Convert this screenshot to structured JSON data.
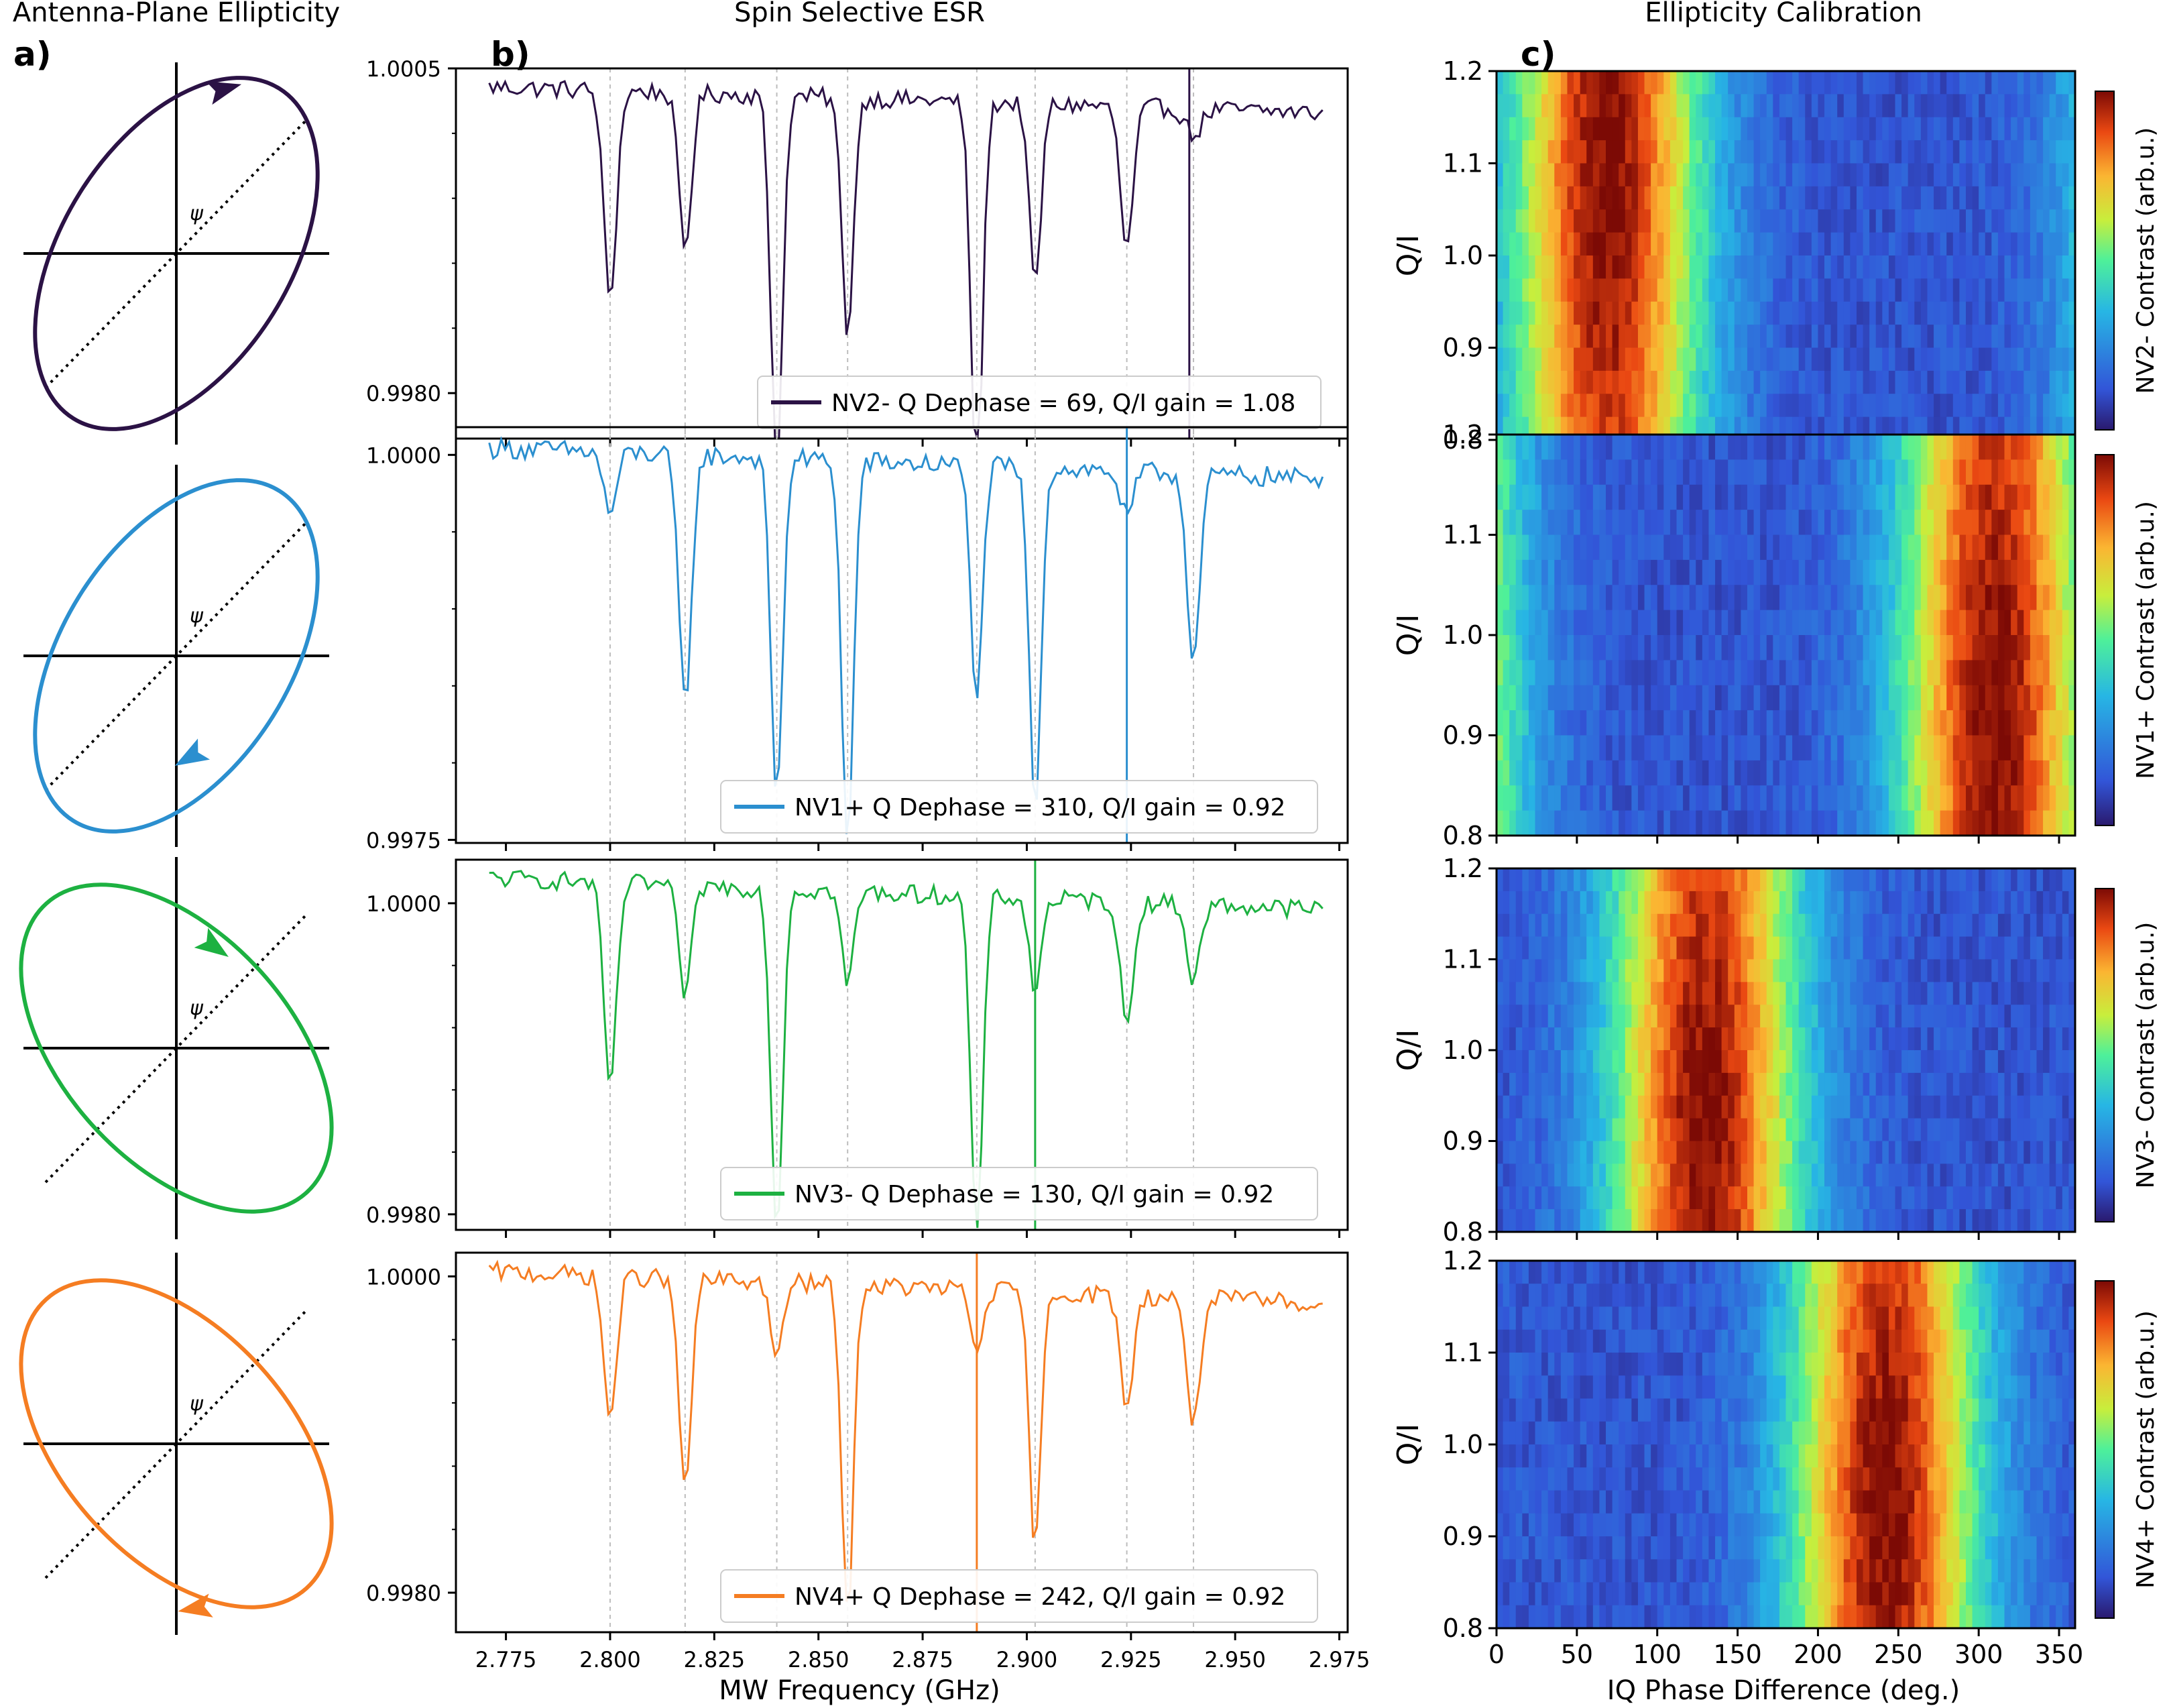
{
  "panel_labels": {
    "a": "a)",
    "b": "b)",
    "c": "c)"
  },
  "column_titles": {
    "a": "Antenna-Plane Ellipticity",
    "b": "Spin Selective ESR",
    "c": "Ellipticity Calibration"
  },
  "psi_label": "ψ",
  "colors": {
    "nv2m": "#2b1245",
    "nv1p": "#2b8fcf",
    "nv3m": "#1db141",
    "nv4p": "#f57d22"
  },
  "chart_data": [
    {
      "id": "ellipses",
      "type": "diagram",
      "title": "Antenna-Plane Ellipticity",
      "items": [
        {
          "series": "NV2-",
          "tilt": "right",
          "arrow": "top",
          "color": "#2b1245"
        },
        {
          "series": "NV1+",
          "tilt": "right",
          "arrow": "bottom",
          "color": "#2b8fcf"
        },
        {
          "series": "NV3-",
          "tilt": "left",
          "arrow": "top",
          "color": "#1db141"
        },
        {
          "series": "NV4+",
          "tilt": "left",
          "arrow": "bottom",
          "color": "#f57d22"
        }
      ]
    },
    {
      "id": "esr",
      "type": "line",
      "title": "Spin Selective ESR",
      "xlabel": "MW Frequency (GHz)",
      "xlim": [
        2.763,
        2.977
      ],
      "xticks": [
        "2.775",
        "2.800",
        "2.825",
        "2.850",
        "2.875",
        "2.900",
        "2.925",
        "2.950",
        "2.975"
      ],
      "xtick_values": [
        2.775,
        2.8,
        2.825,
        2.85,
        2.875,
        2.9,
        2.925,
        2.95,
        2.975
      ],
      "dip_centers": [
        2.8,
        2.818,
        2.84,
        2.857,
        2.888,
        2.902,
        2.924,
        2.94
      ],
      "series": [
        {
          "name": "NV2-",
          "legend": "NV2- Q Dephase = 69, Q/I gain = 1.08",
          "color": "#2b1245",
          "ylim": [
            0.99765,
            1.0005
          ],
          "ytick_labels": [
            "1.0005",
            "0.9980"
          ],
          "ytick_values": [
            1.0005,
            0.998
          ],
          "marker_x": 2.939,
          "dips": [
            [
              2.8,
              0.0016,
              0.0024
            ],
            [
              2.818,
              0.0012,
              0.0024
            ],
            [
              2.84,
              0.0029,
              0.0022
            ],
            [
              2.857,
              0.0018,
              0.0022
            ],
            [
              2.888,
              0.0029,
              0.0022
            ],
            [
              2.902,
              0.0014,
              0.0022
            ],
            [
              2.924,
              0.0011,
              0.0024
            ],
            [
              2.94,
              0.0002,
              0.003
            ]
          ]
        },
        {
          "name": "NV1+",
          "legend": "NV1+ Q Dephase = 310, Q/I gain = 0.92",
          "color": "#2b8fcf",
          "ylim": [
            0.99748,
            1.00018
          ],
          "ytick_labels": [
            "1.0000",
            "0.9975"
          ],
          "ytick_values": [
            1.0,
            0.9975
          ],
          "marker_x": 2.924,
          "dips": [
            [
              2.8,
              0.0004,
              0.0024
            ],
            [
              2.818,
              0.0016,
              0.0024
            ],
            [
              2.84,
              0.0022,
              0.0022
            ],
            [
              2.857,
              0.0025,
              0.0022
            ],
            [
              2.888,
              0.0015,
              0.0022
            ],
            [
              2.902,
              0.0022,
              0.0022
            ],
            [
              2.924,
              0.0003,
              0.0024
            ],
            [
              2.94,
              0.0012,
              0.0024
            ]
          ]
        },
        {
          "name": "NV3-",
          "legend": "NV3- Q Dephase = 130, Q/I gain = 0.92",
          "color": "#1db141",
          "ylim": [
            0.9979,
            1.00028
          ],
          "ytick_labels": [
            "1.0000",
            "0.9980"
          ],
          "ytick_values": [
            1.0,
            0.998
          ],
          "marker_x": 2.902,
          "dips": [
            [
              2.8,
              0.0013,
              0.0024
            ],
            [
              2.818,
              0.0007,
              0.0024
            ],
            [
              2.84,
              0.0022,
              0.0022
            ],
            [
              2.857,
              0.0006,
              0.0022
            ],
            [
              2.888,
              0.0022,
              0.0022
            ],
            [
              2.902,
              0.0006,
              0.0022
            ],
            [
              2.924,
              0.0008,
              0.0024
            ],
            [
              2.94,
              0.0005,
              0.0024
            ]
          ]
        },
        {
          "name": "NV4+",
          "legend": "NV4+ Q Dephase = 242, Q/I gain = 0.92",
          "color": "#f57d22",
          "ylim": [
            0.99775,
            1.00015
          ],
          "ytick_labels": [
            "1.0000",
            "0.9980"
          ],
          "ytick_values": [
            1.0,
            0.998
          ],
          "marker_x": 2.888,
          "dips": [
            [
              2.8,
              0.0009,
              0.0024
            ],
            [
              2.818,
              0.0013,
              0.0024
            ],
            [
              2.84,
              0.0005,
              0.0022
            ],
            [
              2.857,
              0.0021,
              0.0022
            ],
            [
              2.888,
              0.0004,
              0.0022
            ],
            [
              2.902,
              0.0016,
              0.0022
            ],
            [
              2.924,
              0.0007,
              0.0024
            ],
            [
              2.94,
              0.0008,
              0.0024
            ]
          ]
        }
      ]
    },
    {
      "id": "calibration",
      "type": "heatmap",
      "title": "Ellipticity Calibration",
      "xlabel": "IQ Phase Difference (deg.)",
      "ylabel": "Q/I",
      "xlim": [
        0,
        360
      ],
      "ylim": [
        0.8,
        1.2
      ],
      "xticks": [
        "0",
        "50",
        "100",
        "150",
        "200",
        "250",
        "300",
        "350"
      ],
      "xtick_values": [
        0,
        50,
        100,
        150,
        200,
        250,
        300,
        350
      ],
      "yticks": [
        "0.8",
        "0.9",
        "1.0",
        "1.1",
        "1.2"
      ],
      "ytick_values": [
        0.8,
        0.9,
        1.0,
        1.1,
        1.2
      ],
      "panels": [
        {
          "name": "NV2-",
          "colorbar_label": "NV2- Contrast (arb.u.)",
          "peak_deg": 69,
          "peak_ratio": 1.08
        },
        {
          "name": "NV1+",
          "colorbar_label": "NV1+ Contrast (arb.u.)",
          "peak_deg": 310,
          "peak_ratio": 0.92
        },
        {
          "name": "NV3-",
          "colorbar_label": "NV3- Contrast (arb.u.)",
          "peak_deg": 130,
          "peak_ratio": 0.92
        },
        {
          "name": "NV4+",
          "colorbar_label": "NV4+ Contrast (arb.u.)",
          "peak_deg": 242,
          "peak_ratio": 0.92
        }
      ]
    }
  ]
}
